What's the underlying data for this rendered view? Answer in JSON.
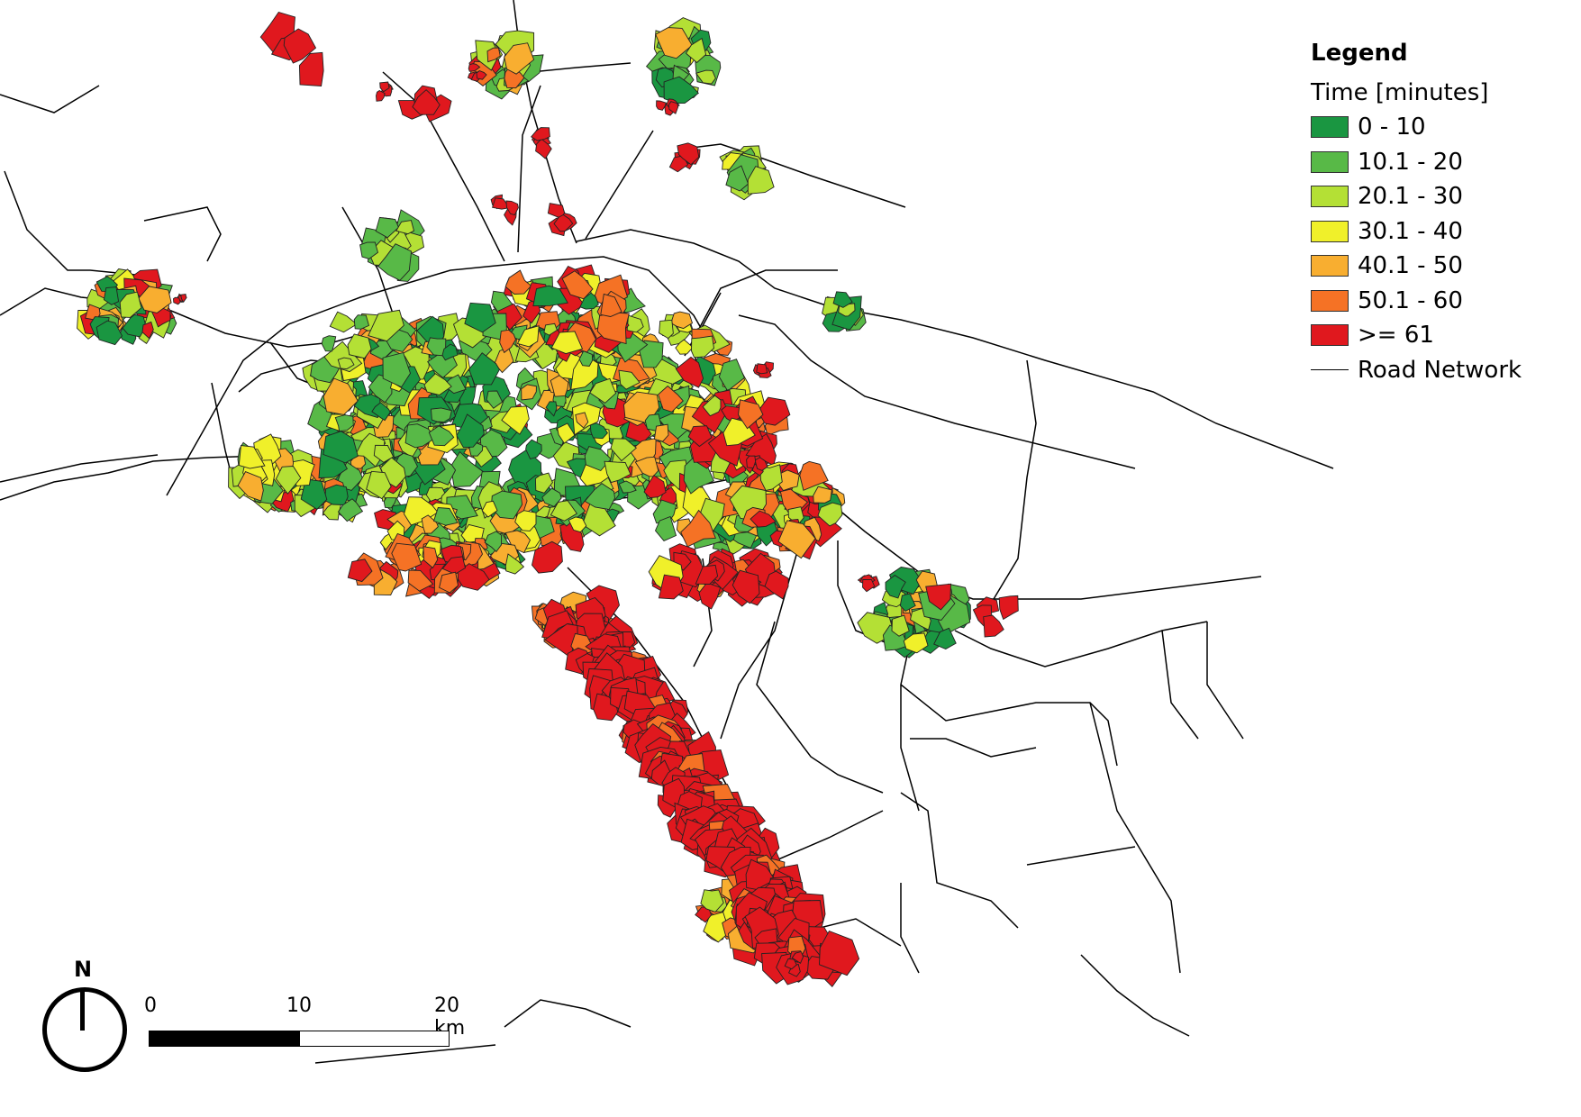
{
  "legend": {
    "title": "Legend",
    "subtitle": "Time [minutes]",
    "classes": [
      {
        "label": "0 - 10",
        "color": "#1a9641"
      },
      {
        "label": "10.1 - 20",
        "color": "#58b947"
      },
      {
        "label": "20.1 - 30",
        "color": "#b4e035"
      },
      {
        "label": "30.1 - 40",
        "color": "#f0f02a"
      },
      {
        "label": "40.1 - 50",
        "color": "#f8ae30"
      },
      {
        "label": "50.1 - 60",
        "color": "#f57225"
      },
      {
        "label": ">= 61",
        "color": "#e0181e"
      }
    ],
    "road_label": "Road Network"
  },
  "north_arrow": {
    "label": "N"
  },
  "scale_bar": {
    "ticks": [
      "0",
      "10",
      "20 km"
    ]
  }
}
